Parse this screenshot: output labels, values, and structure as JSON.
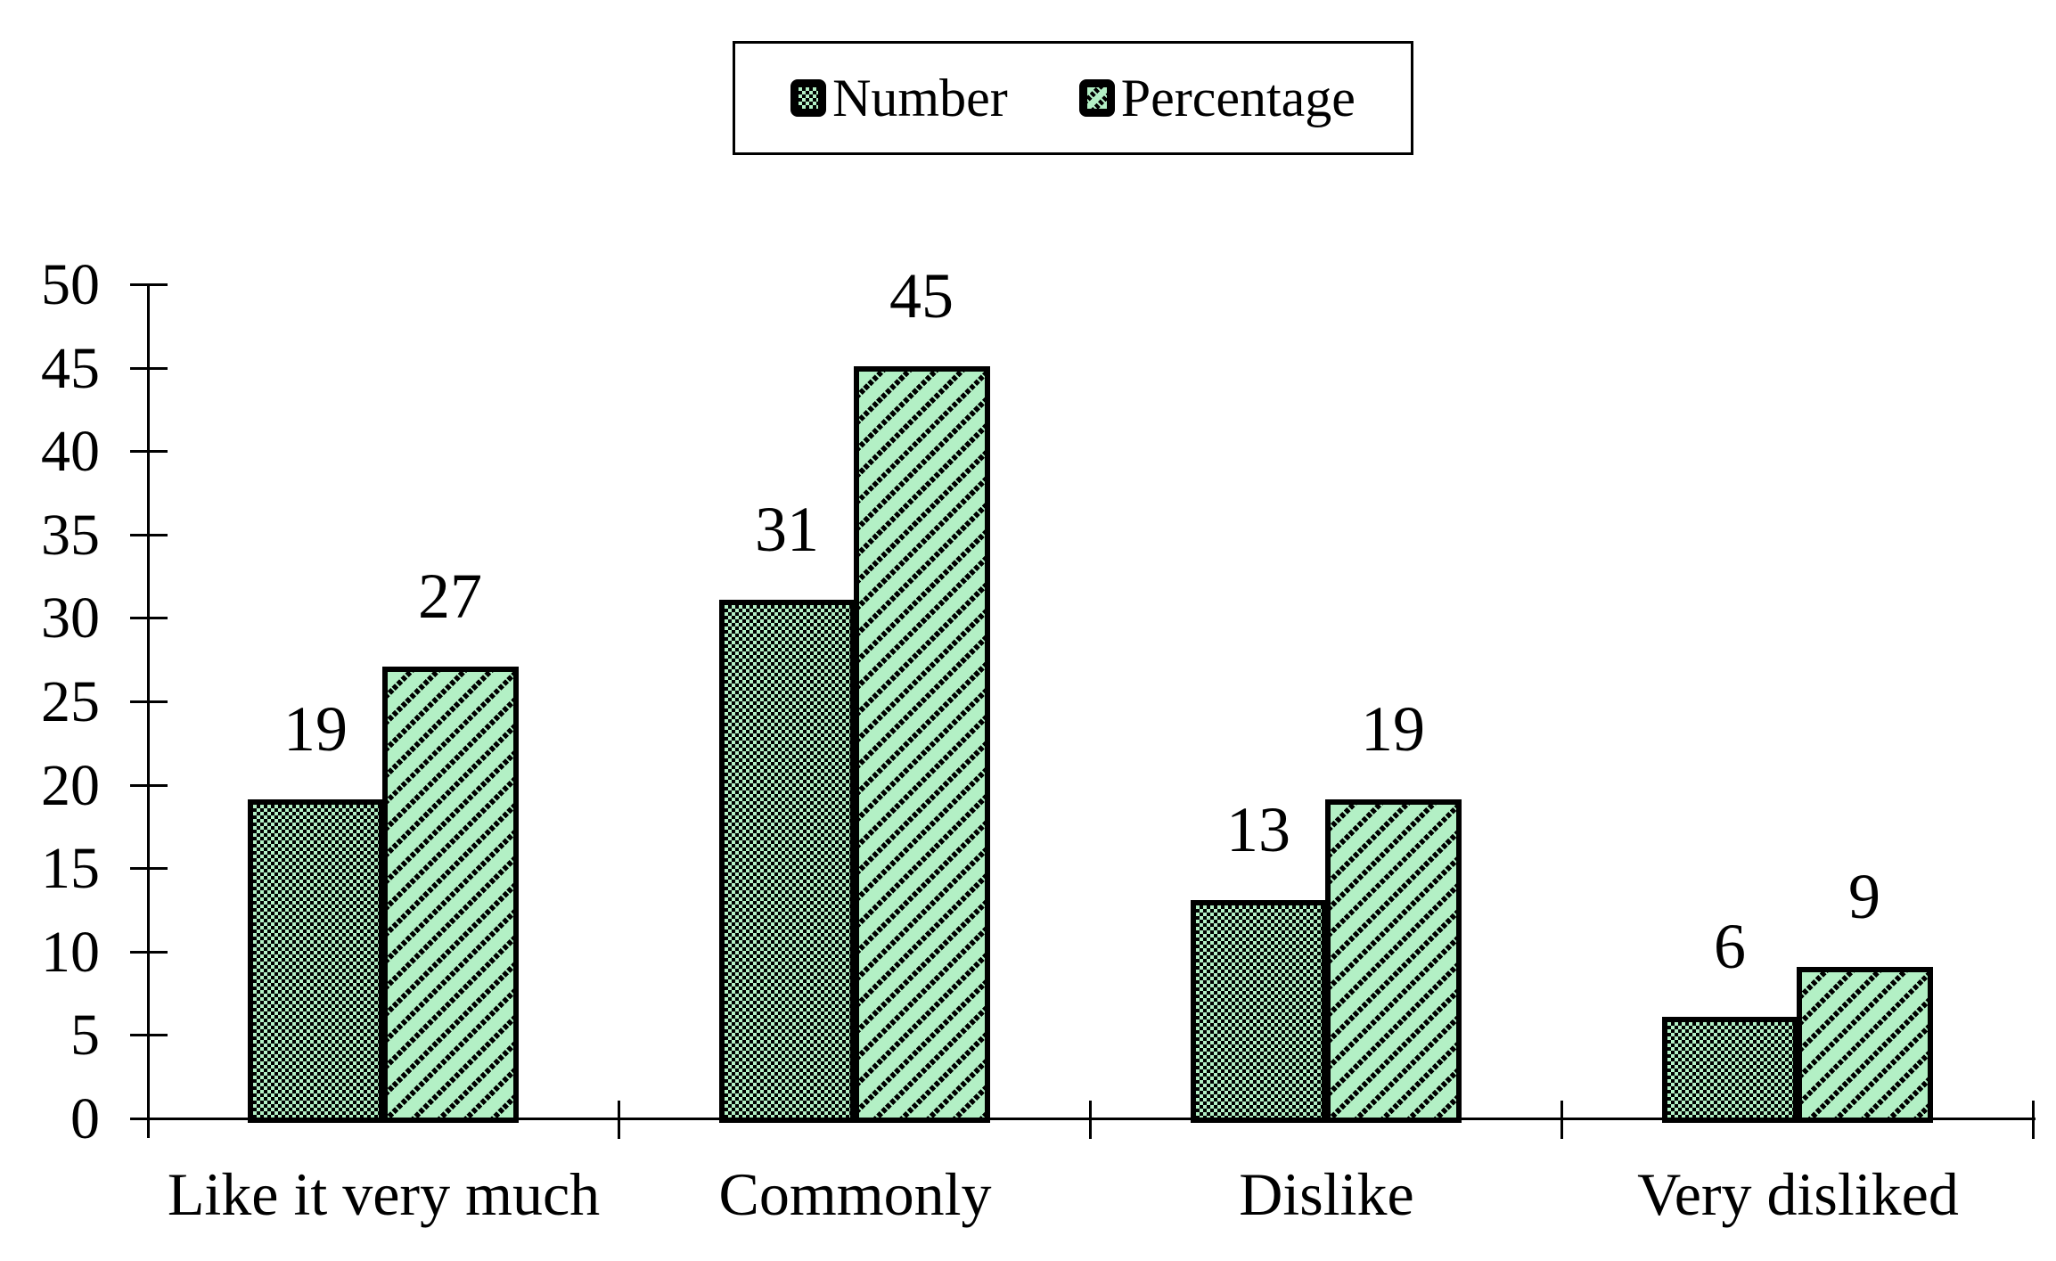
{
  "chart_data": {
    "type": "bar",
    "title": "",
    "xlabel": "",
    "ylabel": "",
    "categories": [
      "Like it very much",
      "Commonly",
      "Dislike",
      "Very disliked"
    ],
    "series": [
      {
        "name": "Number",
        "values": [
          19,
          31,
          13,
          6
        ],
        "pattern": "checker",
        "swatch": "checker-swatch"
      },
      {
        "name": "Percentage",
        "values": [
          27,
          45,
          19,
          9
        ],
        "pattern": "diagonal",
        "swatch": "diagonal-swatch"
      }
    ],
    "data_labels": {
      "number": [
        "19",
        "31",
        "13",
        "6"
      ],
      "percentage": [
        "27",
        "45",
        "19",
        "9"
      ]
    },
    "ylim": [
      0,
      50
    ],
    "yticks": [
      "0",
      "5",
      "10",
      "15",
      "20",
      "25",
      "30",
      "35",
      "40",
      "45",
      "50"
    ],
    "grid": false,
    "legend_position": "top-center",
    "colors": {
      "bar_fill": "#b3f0c5",
      "bar_stroke": "#000000",
      "text": "#000000",
      "background": "#ffffff"
    }
  },
  "legend": {
    "items": [
      {
        "label": "Number"
      },
      {
        "label": "Percentage"
      }
    ]
  }
}
